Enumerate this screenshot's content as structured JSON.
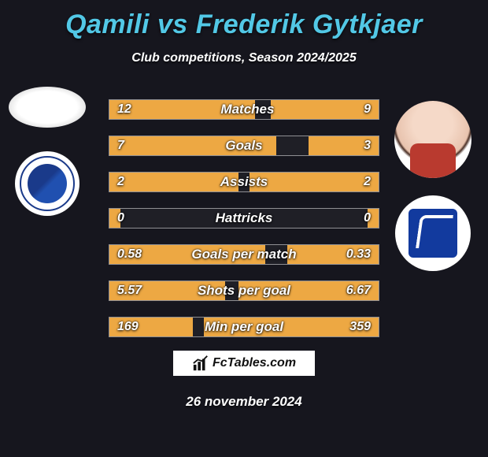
{
  "title": "Qamili vs Frederik Gytkjaer",
  "subtitle": "Club competitions, Season 2024/2025",
  "date": "26 november 2024",
  "watermark": "FcTables.com",
  "colors": {
    "background": "#16161e",
    "title": "#52c8e6",
    "bar_fill": "#eda843",
    "bar_border": "rgba(255,255,255,0.5)",
    "text": "#ffffff"
  },
  "bars": [
    {
      "label": "Matches",
      "left": "12",
      "right": "9",
      "left_pct": 54,
      "right_pct": 40
    },
    {
      "label": "Goals",
      "left": "7",
      "right": "3",
      "left_pct": 62,
      "right_pct": 26
    },
    {
      "label": "Assists",
      "left": "2",
      "right": "2",
      "left_pct": 48,
      "right_pct": 48
    },
    {
      "label": "Hattricks",
      "left": "0",
      "right": "0",
      "left_pct": 4,
      "right_pct": 4
    },
    {
      "label": "Goals per match",
      "left": "0.58",
      "right": "0.33",
      "left_pct": 58,
      "right_pct": 34
    },
    {
      "label": "Shots per goal",
      "left": "5.57",
      "right": "6.67",
      "left_pct": 43,
      "right_pct": 52
    },
    {
      "label": "Min per goal",
      "left": "169",
      "right": "359",
      "left_pct": 31,
      "right_pct": 65
    }
  ]
}
